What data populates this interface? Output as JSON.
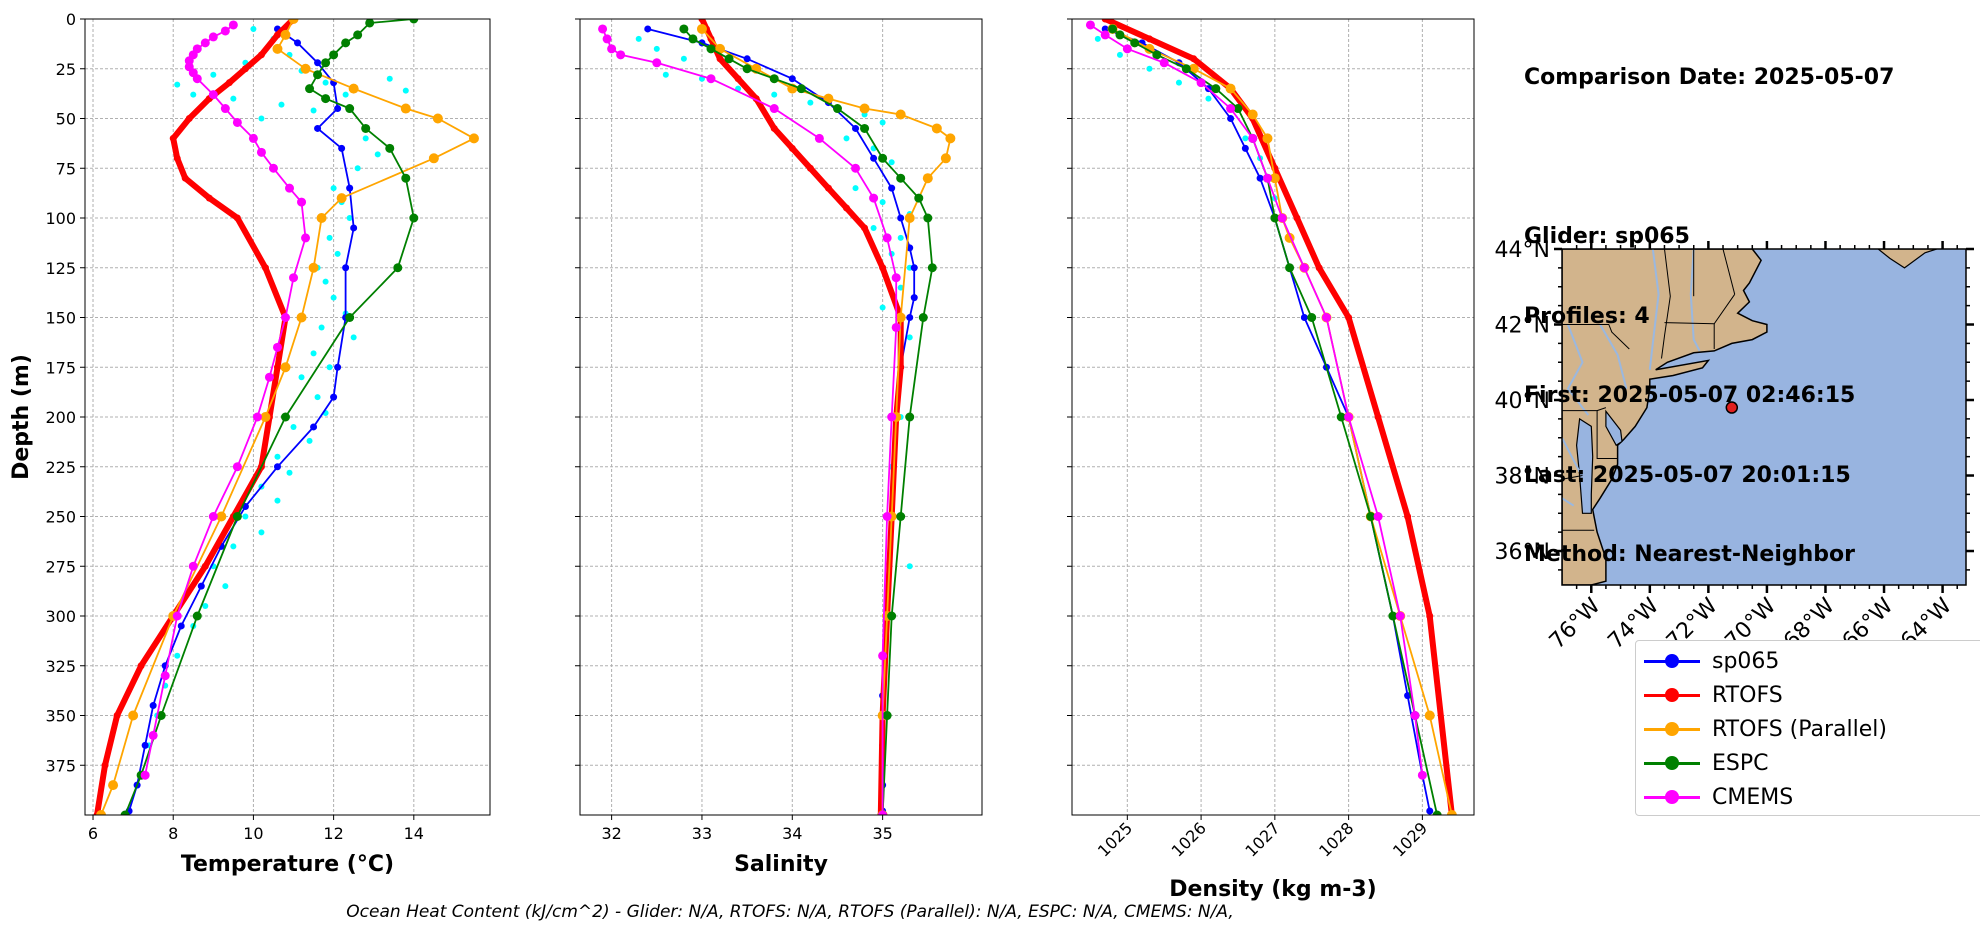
{
  "info": {
    "lines": [
      "Comparison Date: 2025-05-07",
      "",
      "Glider: sp065",
      "Profiles: 4",
      "First: 2025-05-07 02:46:15",
      "Last: 2025-05-07 20:01:15",
      "Method: Nearest-Neighbor"
    ]
  },
  "footer": "Ocean Heat Content (kJ/cm^2) - Glider: N/A,  RTOFS: N/A,  RTOFS (Parallel): N/A,  ESPC: N/A,  CMEMS: N/A,",
  "legend": [
    {
      "label": "sp065",
      "color": "#0000ff"
    },
    {
      "label": "RTOFS",
      "color": "#ff0000"
    },
    {
      "label": "RTOFS (Parallel)",
      "color": "#ffa500"
    },
    {
      "label": "ESPC",
      "color": "#008000"
    },
    {
      "label": "CMEMS",
      "color": "#ff00ff"
    }
  ],
  "map": {
    "lat_ticks": [
      "44°N",
      "42°N",
      "40°N",
      "38°N",
      "36°N"
    ],
    "lon_ticks": [
      "76°W",
      "74°W",
      "72°W",
      "70°W",
      "68°W",
      "66°W",
      "64°W"
    ],
    "station": {
      "lon": -71.2,
      "lat": 39.8
    },
    "land_color": "#d2b48c",
    "ocean_color": "#98b4e0",
    "station_color": "#e02020"
  },
  "chart_data": [
    {
      "type": "line",
      "xlabel": "Temperature (°C)",
      "ylabel": "Depth (m)",
      "xlim": [
        5.8,
        15.9
      ],
      "ylim": [
        400,
        0
      ],
      "xticks": [
        6,
        8,
        10,
        12,
        14
      ],
      "yticks": [
        0,
        25,
        50,
        75,
        100,
        125,
        150,
        175,
        200,
        225,
        250,
        275,
        300,
        325,
        350,
        375
      ],
      "grid": true,
      "glider_scatter": {
        "color": "#00ffff",
        "x": [
          10.0,
          10.5,
          10.9,
          9.8,
          11.2,
          9.0,
          8.1,
          8.5,
          9.5,
          10.7,
          11.8,
          12.3,
          13.4,
          13.8,
          11.5,
          10.2,
          12.8,
          13.1,
          12.6,
          12.0,
          12.2,
          12.4,
          11.9,
          12.1,
          11.6,
          11.8,
          12.0,
          12.3,
          11.7,
          12.5,
          11.5,
          11.9,
          11.2,
          11.6,
          11.8,
          11.0,
          11.4,
          10.6,
          10.9,
          10.2,
          10.6,
          9.8,
          10.2,
          9.5,
          9.0,
          9.3,
          8.8,
          8.5,
          8.1,
          7.8,
          7.6,
          7.4,
          7.2
        ],
        "y": [
          5,
          10,
          18,
          22,
          26,
          28,
          33,
          38,
          40,
          43,
          32,
          38,
          30,
          36,
          46,
          50,
          60,
          68,
          75,
          85,
          92,
          100,
          110,
          118,
          125,
          132,
          140,
          148,
          155,
          160,
          168,
          175,
          180,
          190,
          198,
          205,
          212,
          220,
          228,
          235,
          242,
          250,
          258,
          265,
          275,
          285,
          295,
          305,
          320,
          335,
          350,
          365,
          380
        ]
      },
      "series": [
        {
          "name": "sp065",
          "color": "#0000ff",
          "width": 1.8,
          "marker": 6,
          "x": [
            10.6,
            11.1,
            11.6,
            12.0,
            12.1,
            11.6,
            12.2,
            12.4,
            12.5,
            12.3,
            12.3,
            12.1,
            12.0,
            11.5,
            10.6,
            9.8,
            9.2,
            8.7,
            8.2,
            7.8,
            7.5,
            7.3,
            7.1,
            6.9
          ],
          "y": [
            5,
            12,
            22,
            32,
            45,
            55,
            65,
            85,
            105,
            125,
            150,
            175,
            190,
            205,
            225,
            245,
            265,
            285,
            305,
            325,
            345,
            365,
            385,
            398
          ]
        },
        {
          "name": "RTOFS",
          "color": "#ff0000",
          "width": 6,
          "marker": 6,
          "x": [
            11.0,
            10.6,
            10.2,
            9.8,
            9.4,
            8.9,
            8.4,
            8.0,
            8.1,
            8.3,
            8.9,
            9.6,
            10.3,
            10.8,
            10.6,
            10.4,
            10.2,
            9.5,
            8.8,
            8.0,
            7.2,
            6.6,
            6.3,
            6.1
          ],
          "y": [
            0,
            8,
            18,
            25,
            32,
            40,
            50,
            60,
            70,
            80,
            90,
            100,
            125,
            150,
            175,
            200,
            225,
            250,
            275,
            300,
            325,
            350,
            375,
            400
          ]
        },
        {
          "name": "RTOFS (Parallel)",
          "color": "#ffa500",
          "width": 1.8,
          "marker": 9,
          "x": [
            11.0,
            10.8,
            10.6,
            11.3,
            12.5,
            13.8,
            14.6,
            15.5,
            14.5,
            12.2,
            11.7,
            11.5,
            11.2,
            10.8,
            10.3,
            9.2,
            8.0,
            7.0,
            6.5,
            6.2
          ],
          "y": [
            0,
            8,
            15,
            25,
            35,
            45,
            50,
            60,
            70,
            90,
            100,
            125,
            150,
            175,
            200,
            250,
            300,
            350,
            385,
            400
          ]
        },
        {
          "name": "ESPC",
          "color": "#008000",
          "width": 1.8,
          "marker": 8,
          "x": [
            14.0,
            12.9,
            12.6,
            12.3,
            12.0,
            11.8,
            11.6,
            11.4,
            11.8,
            12.4,
            12.8,
            13.4,
            13.8,
            14.0,
            13.6,
            12.4,
            10.8,
            9.6,
            8.6,
            7.7,
            7.2,
            6.8
          ],
          "y": [
            0,
            2,
            8,
            12,
            18,
            22,
            28,
            35,
            40,
            45,
            55,
            65,
            80,
            100,
            125,
            150,
            200,
            250,
            300,
            350,
            380,
            400
          ]
        },
        {
          "name": "CMEMS",
          "color": "#ff00ff",
          "width": 1.8,
          "marker": 8,
          "x": [
            9.5,
            9.3,
            9.0,
            8.8,
            8.6,
            8.5,
            8.4,
            8.4,
            8.5,
            8.6,
            9.0,
            9.3,
            9.6,
            10.0,
            10.2,
            10.5,
            10.9,
            11.2,
            11.3,
            11.0,
            10.8,
            10.6,
            10.4,
            10.1,
            9.6,
            9.0,
            8.5,
            8.1,
            7.8,
            7.5,
            7.3
          ],
          "y": [
            3,
            6,
            9,
            12,
            15,
            18,
            21,
            24,
            27,
            30,
            38,
            45,
            52,
            60,
            67,
            75,
            85,
            92,
            110,
            130,
            150,
            165,
            180,
            200,
            225,
            250,
            275,
            300,
            330,
            360,
            380
          ]
        }
      ]
    },
    {
      "type": "line",
      "xlabel": "Salinity",
      "xlim": [
        31.65,
        36.1
      ],
      "ylim": [
        400,
        0
      ],
      "xticks": [
        32,
        33,
        34,
        35
      ],
      "grid": true,
      "glider_scatter": {
        "color": "#00ffff",
        "x": [
          32.3,
          32.5,
          32.8,
          32.6,
          33.0,
          33.4,
          33.8,
          34.2,
          34.5,
          34.8,
          35.0,
          34.6,
          34.9,
          35.1,
          35.2,
          34.7,
          35.0,
          35.3,
          34.9,
          35.2,
          35.1,
          35.3,
          35.2,
          35.0,
          35.3,
          35.2,
          35.2,
          35.1,
          35.2,
          35.3
        ],
        "y": [
          10,
          15,
          20,
          28,
          30,
          35,
          38,
          42,
          45,
          48,
          52,
          60,
          65,
          72,
          80,
          85,
          92,
          98,
          105,
          110,
          118,
          125,
          135,
          145,
          160,
          175,
          200,
          225,
          250,
          275
        ]
      },
      "series": [
        {
          "name": "sp065",
          "color": "#0000ff",
          "width": 1.8,
          "marker": 6,
          "x": [
            32.4,
            33.0,
            33.5,
            34.0,
            34.4,
            34.7,
            34.9,
            35.1,
            35.2,
            35.3,
            35.35,
            35.35,
            35.3,
            35.2,
            35.15,
            35.1,
            35.05,
            35.0,
            35.0,
            35.0,
            35.0
          ],
          "y": [
            5,
            12,
            20,
            30,
            42,
            55,
            70,
            85,
            100,
            115,
            125,
            140,
            150,
            175,
            200,
            250,
            300,
            340,
            365,
            385,
            398
          ]
        },
        {
          "name": "RTOFS",
          "color": "#ff0000",
          "width": 6,
          "marker": 6,
          "x": [
            33.0,
            33.05,
            33.1,
            33.2,
            33.4,
            33.6,
            33.8,
            34.0,
            34.2,
            34.4,
            34.6,
            34.8,
            35.0,
            35.2,
            35.2,
            35.15,
            35.1,
            35.05,
            35.0,
            34.98
          ],
          "y": [
            0,
            5,
            10,
            20,
            30,
            40,
            55,
            65,
            75,
            85,
            95,
            105,
            125,
            150,
            175,
            200,
            250,
            300,
            350,
            400
          ]
        },
        {
          "name": "RTOFS (Parallel)",
          "color": "#ffa500",
          "width": 1.8,
          "marker": 9,
          "x": [
            33.0,
            33.2,
            33.6,
            34.0,
            34.4,
            34.8,
            35.2,
            35.6,
            35.75,
            35.7,
            35.5,
            35.3,
            35.2,
            35.15,
            35.1,
            35.05,
            35.0,
            35.0
          ],
          "y": [
            5,
            15,
            25,
            35,
            40,
            45,
            48,
            55,
            60,
            70,
            80,
            100,
            150,
            200,
            250,
            300,
            350,
            400
          ]
        },
        {
          "name": "ESPC",
          "color": "#008000",
          "width": 1.8,
          "marker": 8,
          "x": [
            32.8,
            32.9,
            33.1,
            33.3,
            33.5,
            33.8,
            34.1,
            34.5,
            34.8,
            35.0,
            35.2,
            35.4,
            35.5,
            35.55,
            35.45,
            35.3,
            35.2,
            35.1,
            35.05,
            35.0
          ],
          "y": [
            5,
            10,
            15,
            20,
            25,
            30,
            35,
            45,
            55,
            70,
            80,
            90,
            100,
            125,
            150,
            200,
            250,
            300,
            350,
            400
          ]
        },
        {
          "name": "CMEMS",
          "color": "#ff00ff",
          "width": 1.8,
          "marker": 8,
          "x": [
            31.9,
            31.95,
            32.0,
            32.1,
            32.5,
            33.1,
            33.8,
            34.3,
            34.7,
            34.9,
            35.05,
            35.15,
            35.15,
            35.1,
            35.05,
            35.0,
            35.0
          ],
          "y": [
            5,
            10,
            15,
            18,
            22,
            30,
            45,
            60,
            75,
            90,
            110,
            130,
            155,
            200,
            250,
            320,
            400
          ]
        }
      ]
    },
    {
      "type": "line",
      "xlabel": "Density (kg m-3)",
      "xlim": [
        1024.25,
        1029.7
      ],
      "ylim": [
        400,
        0
      ],
      "xticks": [
        1025,
        1026,
        1027,
        1028,
        1029
      ],
      "grid": true,
      "glider_scatter": {
        "color": "#00ffff",
        "x": [
          1024.6,
          1024.9,
          1025.3,
          1025.7,
          1026.1,
          1026.4,
          1026.6,
          1026.8,
          1026.9,
          1027.0
        ],
        "y": [
          10,
          18,
          25,
          32,
          40,
          50,
          60,
          70,
          80,
          90
        ]
      },
      "series": [
        {
          "name": "sp065",
          "color": "#0000ff",
          "width": 1.8,
          "marker": 6,
          "x": [
            1024.7,
            1025.2,
            1025.7,
            1026.1,
            1026.4,
            1026.6,
            1026.8,
            1027.0,
            1027.2,
            1027.4,
            1027.7,
            1028.0,
            1028.3,
            1028.6,
            1028.8,
            1029.0,
            1029.1
          ],
          "y": [
            5,
            12,
            22,
            35,
            50,
            65,
            80,
            100,
            125,
            150,
            175,
            200,
            250,
            300,
            340,
            380,
            398
          ]
        },
        {
          "name": "RTOFS",
          "color": "#ff0000",
          "width": 6,
          "marker": 6,
          "x": [
            1024.7,
            1025.3,
            1025.9,
            1026.4,
            1026.7,
            1027.0,
            1027.3,
            1027.6,
            1028.0,
            1028.4,
            1028.8,
            1029.1,
            1029.4
          ],
          "y": [
            0,
            10,
            20,
            35,
            50,
            75,
            100,
            125,
            150,
            200,
            250,
            300,
            400
          ]
        },
        {
          "name": "RTOFS (Parallel)",
          "color": "#ffa500",
          "width": 1.8,
          "marker": 9,
          "x": [
            1024.8,
            1025.3,
            1025.9,
            1026.4,
            1026.7,
            1026.9,
            1027.0,
            1027.1,
            1027.2,
            1027.4,
            1027.7,
            1028.0,
            1028.3,
            1028.7,
            1029.1,
            1029.4
          ],
          "y": [
            5,
            15,
            25,
            35,
            48,
            60,
            80,
            100,
            110,
            125,
            150,
            200,
            250,
            300,
            350,
            400
          ]
        },
        {
          "name": "ESPC",
          "color": "#008000",
          "width": 1.8,
          "marker": 8,
          "x": [
            1024.8,
            1024.9,
            1025.1,
            1025.4,
            1025.8,
            1026.2,
            1026.5,
            1026.7,
            1026.9,
            1027.0,
            1027.2,
            1027.5,
            1027.9,
            1028.3,
            1028.6,
            1028.9,
            1029.2
          ],
          "y": [
            5,
            8,
            12,
            18,
            25,
            35,
            45,
            60,
            80,
            100,
            125,
            150,
            200,
            250,
            300,
            350,
            400
          ]
        },
        {
          "name": "CMEMS",
          "color": "#ff00ff",
          "width": 1.8,
          "marker": 8,
          "x": [
            1024.5,
            1024.7,
            1025.0,
            1025.5,
            1026.0,
            1026.4,
            1026.7,
            1026.9,
            1027.1,
            1027.4,
            1027.7,
            1028.0,
            1028.4,
            1028.7,
            1028.9,
            1029.0
          ],
          "y": [
            3,
            8,
            15,
            22,
            32,
            45,
            60,
            80,
            100,
            125,
            150,
            200,
            250,
            300,
            350,
            380
          ]
        }
      ]
    }
  ]
}
